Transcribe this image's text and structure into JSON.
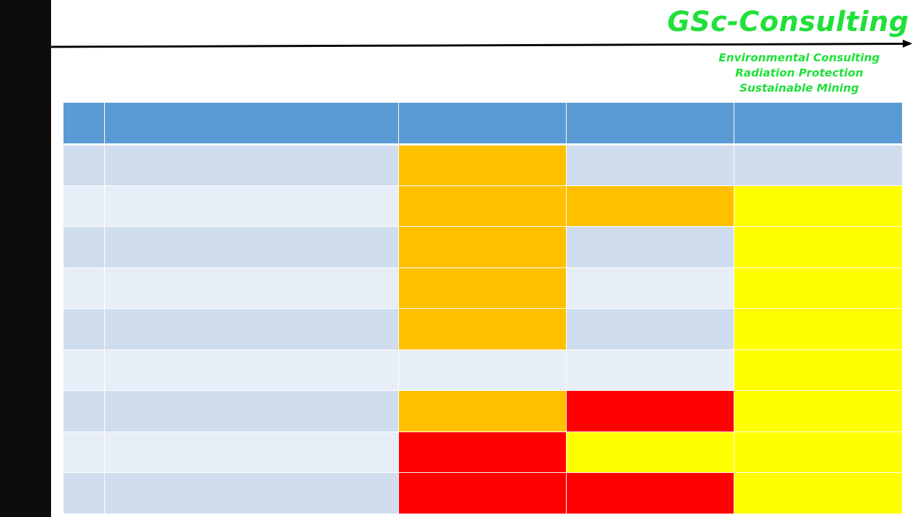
{
  "brand": {
    "name": "GSc-Consulting",
    "tagline": [
      "Environmental Consulting",
      "Radiation Protection",
      "Sustainable Mining"
    ],
    "color": "#21e03a"
  },
  "colors": {
    "left_bar": "#0d0d0d",
    "header_cells": "#5b9bd5",
    "row_dark": "#d0ddee",
    "row_light": "#e8eef7",
    "level_orange": "#ffc000",
    "level_yellow": "#ffff00",
    "level_red": "#ff0000"
  },
  "table": {
    "header": [
      "",
      "",
      "",
      "",
      ""
    ],
    "rows": [
      {
        "band": "dark",
        "cells": [
          "",
          "",
          ""
        ],
        "levels": [
          "orange",
          "none",
          "none"
        ]
      },
      {
        "band": "light",
        "cells": [
          "",
          "",
          ""
        ],
        "levels": [
          "orange",
          "orange",
          "yellow"
        ]
      },
      {
        "band": "dark",
        "cells": [
          "",
          "",
          ""
        ],
        "levels": [
          "orange",
          "none",
          "yellow"
        ]
      },
      {
        "band": "light",
        "cells": [
          "",
          "",
          ""
        ],
        "levels": [
          "orange",
          "none",
          "yellow"
        ]
      },
      {
        "band": "dark",
        "cells": [
          "",
          "",
          ""
        ],
        "levels": [
          "orange",
          "none",
          "yellow"
        ]
      },
      {
        "band": "light",
        "cells": [
          "",
          "",
          ""
        ],
        "levels": [
          "none",
          "none",
          "yellow"
        ]
      },
      {
        "band": "dark",
        "cells": [
          "",
          "",
          ""
        ],
        "levels": [
          "orange",
          "red",
          "yellow"
        ]
      },
      {
        "band": "light",
        "cells": [
          "",
          "",
          ""
        ],
        "levels": [
          "red",
          "yellow",
          "yellow"
        ]
      },
      {
        "band": "dark",
        "cells": [
          "",
          "",
          ""
        ],
        "levels": [
          "red",
          "red",
          "yellow"
        ]
      }
    ]
  }
}
